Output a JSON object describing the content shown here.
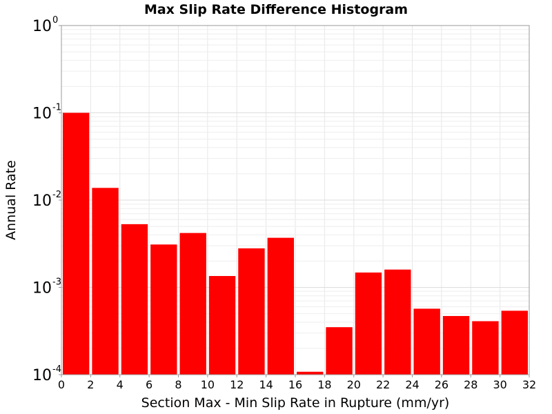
{
  "chart_data": {
    "type": "bar",
    "title": "Max Slip Rate Difference Histogram",
    "xlabel": "Section Max - Min Slip Rate in Rupture (mm/yr)",
    "ylabel": "Annual Rate",
    "yscale": "log",
    "xlim": [
      0,
      32
    ],
    "ylim": [
      0.0001,
      1
    ],
    "bin_width": 2,
    "x_ticks": [
      "0",
      "2",
      "4",
      "6",
      "8",
      "10",
      "12",
      "14",
      "16",
      "18",
      "20",
      "22",
      "24",
      "26",
      "28",
      "30",
      "32"
    ],
    "y_ticks": [
      {
        "base": "10",
        "exp": "0",
        "value": 1
      },
      {
        "base": "10",
        "exp": "-1",
        "value": 0.1
      },
      {
        "base": "10",
        "exp": "-2",
        "value": 0.01
      },
      {
        "base": "10",
        "exp": "-3",
        "value": 0.001
      },
      {
        "base": "10",
        "exp": "-4",
        "value": 0.0001
      }
    ],
    "bin_starts": [
      0,
      2,
      4,
      6,
      8,
      10,
      12,
      14,
      16,
      18,
      20,
      22,
      24,
      26,
      28,
      30
    ],
    "values": [
      0.1,
      0.0138,
      0.0053,
      0.0031,
      0.0042,
      0.00135,
      0.0028,
      0.0037,
      0.000108,
      0.00035,
      0.00148,
      0.0016,
      0.00057,
      0.00047,
      0.00041,
      0.00054
    ],
    "bar_color": "#ff0000",
    "grid": true
  }
}
